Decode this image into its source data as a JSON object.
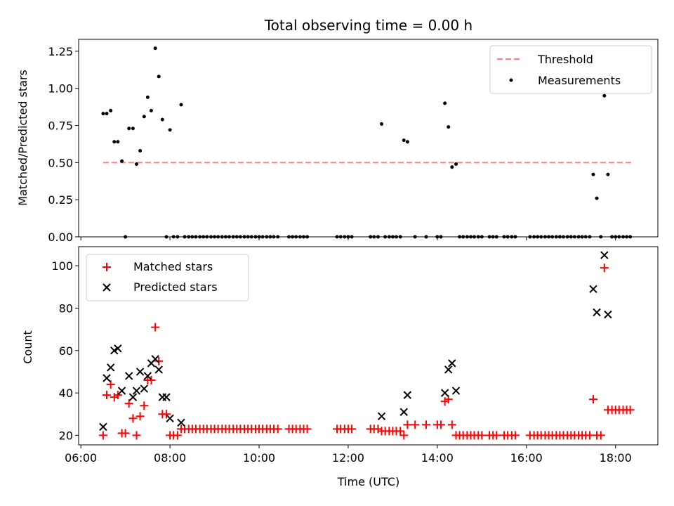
{
  "chart_data": [
    {
      "type": "scatter",
      "title": "Total observing time = 0.00 h",
      "xlabel": "",
      "ylabel": "Matched/Predicted stars",
      "ylim": [
        0,
        1.33
      ],
      "yticks": [
        "0.00",
        "0.25",
        "0.50",
        "0.75",
        "1.00",
        "1.25"
      ],
      "ytick_values": [
        0,
        0.25,
        0.5,
        0.75,
        1.0,
        1.25
      ],
      "grid": false,
      "legend_position": "top-right",
      "legend": [
        {
          "label": "Threshold",
          "style": "dashed-line",
          "color": "#ff7f7f"
        },
        {
          "label": "Measurements",
          "style": "dot",
          "color": "#000000"
        }
      ],
      "threshold": {
        "value": 0.5,
        "x_start": 6.5,
        "x_end": 18.35
      },
      "measurements": {
        "x": [
          6.5,
          6.58,
          6.67,
          6.75,
          6.83,
          6.92,
          7.0,
          7.08,
          7.17,
          7.25,
          7.33,
          7.42,
          7.5,
          7.58,
          7.67,
          7.75,
          7.83,
          7.92,
          8.0,
          8.08,
          8.17,
          8.25,
          8.33,
          8.42,
          8.5,
          8.58,
          8.67,
          8.75,
          8.83,
          8.92,
          9.0,
          9.08,
          9.17,
          9.25,
          9.33,
          9.42,
          9.5,
          9.58,
          9.67,
          9.75,
          9.83,
          9.92,
          10.0,
          10.08,
          10.17,
          10.25,
          10.33,
          10.42,
          10.67,
          10.75,
          10.83,
          10.92,
          11.0,
          11.08,
          11.75,
          11.83,
          11.92,
          12.0,
          12.08,
          12.5,
          12.58,
          12.67,
          12.75,
          12.83,
          12.92,
          13.0,
          13.08,
          13.17,
          13.25,
          13.33,
          13.5,
          13.75,
          14.0,
          14.08,
          14.17,
          14.25,
          14.33,
          14.42,
          14.5,
          14.58,
          14.67,
          14.75,
          14.83,
          14.92,
          15.0,
          15.17,
          15.25,
          15.33,
          15.5,
          15.58,
          15.67,
          15.75,
          16.08,
          16.17,
          16.25,
          16.33,
          16.42,
          16.5,
          16.58,
          16.67,
          16.75,
          16.83,
          16.92,
          17.0,
          17.08,
          17.17,
          17.25,
          17.33,
          17.42,
          17.5,
          17.58,
          17.67,
          17.75,
          17.83,
          17.92,
          18.0,
          18.08,
          18.17,
          18.25,
          18.33
        ],
        "y": [
          0.83,
          0.83,
          0.85,
          0.64,
          0.64,
          0.51,
          0.0,
          0.73,
          0.73,
          0.49,
          0.58,
          0.81,
          0.94,
          0.85,
          1.27,
          1.08,
          0.79,
          0.0,
          0.72,
          0.0,
          0.0,
          0.89,
          0.0,
          0.0,
          0.0,
          0.0,
          0.0,
          0.0,
          0.0,
          0.0,
          0.0,
          0.0,
          0.0,
          0.0,
          0.0,
          0.0,
          0.0,
          0.0,
          0.0,
          0.0,
          0.0,
          0.0,
          0.0,
          0.0,
          0.0,
          0.0,
          0.0,
          0.0,
          0.0,
          0.0,
          0.0,
          0.0,
          0.0,
          0.0,
          0.0,
          0.0,
          0.0,
          0.0,
          0.0,
          0.0,
          0.0,
          0.0,
          0.76,
          0.0,
          0.0,
          0.0,
          0.0,
          0.0,
          0.65,
          0.64,
          0.0,
          0.0,
          0.0,
          0.0,
          0.9,
          0.74,
          0.47,
          0.49,
          0.0,
          0.0,
          0.0,
          0.0,
          0.0,
          0.0,
          0.0,
          0.0,
          0.0,
          0.0,
          0.0,
          0.0,
          0.0,
          0.0,
          0.0,
          0.0,
          0.0,
          0.0,
          0.0,
          0.0,
          0.0,
          0.0,
          0.0,
          0.0,
          0.0,
          0.0,
          0.0,
          0.0,
          0.0,
          0.0,
          0.0,
          0.42,
          0.26,
          0.0,
          0.95,
          0.42,
          0.0,
          0.0,
          0.0,
          0.0,
          0.0,
          0.0
        ]
      }
    },
    {
      "type": "scatter",
      "title": "",
      "xlabel": "Time (UTC)",
      "ylabel": "Count",
      "ylim": [
        15.5,
        109
      ],
      "xlim": [
        5.95,
        18.95
      ],
      "xticks": [
        "06:00",
        "08:00",
        "10:00",
        "12:00",
        "14:00",
        "16:00",
        "18:00"
      ],
      "xtick_values": [
        6,
        8,
        10,
        12,
        14,
        16,
        18
      ],
      "yticks": [
        "20",
        "40",
        "60",
        "80",
        "100"
      ],
      "ytick_values": [
        20,
        40,
        60,
        80,
        100
      ],
      "grid": false,
      "legend_position": "top-left",
      "series": [
        {
          "name": "Matched stars",
          "marker": "plus",
          "color": "#ff0000",
          "x": [
            6.5,
            6.58,
            6.67,
            6.75,
            6.83,
            6.92,
            7.0,
            7.08,
            7.17,
            7.25,
            7.33,
            7.42,
            7.5,
            7.58,
            7.67,
            7.75,
            7.83,
            7.92,
            8.0,
            8.08,
            8.17,
            8.25,
            8.33,
            8.42,
            8.5,
            8.58,
            8.67,
            8.75,
            8.83,
            8.92,
            9.0,
            9.08,
            9.17,
            9.25,
            9.33,
            9.42,
            9.5,
            9.58,
            9.67,
            9.75,
            9.83,
            9.92,
            10.0,
            10.08,
            10.17,
            10.25,
            10.33,
            10.42,
            10.67,
            10.75,
            10.83,
            10.92,
            11.0,
            11.08,
            11.75,
            11.83,
            11.92,
            12.0,
            12.08,
            12.5,
            12.58,
            12.67,
            12.75,
            12.83,
            12.92,
            13.0,
            13.08,
            13.17,
            13.25,
            13.33,
            13.5,
            13.75,
            14.0,
            14.08,
            14.17,
            14.25,
            14.33,
            14.42,
            14.5,
            14.58,
            14.67,
            14.75,
            14.83,
            14.92,
            15.0,
            15.17,
            15.25,
            15.33,
            15.5,
            15.58,
            15.67,
            15.75,
            16.08,
            16.17,
            16.25,
            16.33,
            16.42,
            16.5,
            16.58,
            16.67,
            16.75,
            16.83,
            16.92,
            17.0,
            17.08,
            17.17,
            17.25,
            17.33,
            17.42,
            17.5,
            17.58,
            17.67,
            17.75,
            17.83,
            17.92,
            18.0,
            18.08,
            18.17,
            18.25,
            18.33
          ],
          "y": [
            20,
            39,
            44,
            38,
            39,
            21,
            21,
            35,
            28,
            20,
            29,
            34,
            46,
            46,
            71,
            55,
            30,
            30,
            20,
            20,
            20,
            23,
            23,
            23,
            23,
            23,
            23,
            23,
            23,
            23,
            23,
            23,
            23,
            23,
            23,
            23,
            23,
            23,
            23,
            23,
            23,
            23,
            23,
            23,
            23,
            23,
            23,
            23,
            23,
            23,
            23,
            23,
            23,
            23,
            23,
            23,
            23,
            23,
            23,
            23,
            23,
            23,
            22,
            22,
            22,
            22,
            22,
            22,
            20,
            25,
            25,
            25,
            25,
            25,
            36,
            37,
            25,
            20,
            20,
            20,
            20,
            20,
            20,
            20,
            20,
            20,
            20,
            20,
            20,
            20,
            20,
            20,
            20,
            20,
            20,
            20,
            20,
            20,
            20,
            20,
            20,
            20,
            20,
            20,
            20,
            20,
            20,
            20,
            20,
            37,
            20,
            20,
            99,
            32,
            32,
            32,
            32,
            32,
            32,
            32
          ]
        },
        {
          "name": "Predicted stars",
          "marker": "x",
          "color": "#000000",
          "x": [
            6.5,
            6.58,
            6.67,
            6.75,
            6.83,
            6.92,
            7.08,
            7.17,
            7.25,
            7.33,
            7.42,
            7.5,
            7.58,
            7.67,
            7.75,
            7.83,
            7.92,
            8.0,
            8.25,
            12.75,
            13.25,
            13.33,
            14.17,
            14.25,
            14.33,
            14.42,
            17.5,
            17.58,
            17.75,
            17.83
          ],
          "y": [
            24,
            47,
            52,
            60,
            61,
            41,
            48,
            38,
            41,
            50,
            42,
            48,
            54,
            56,
            51,
            38,
            38,
            28,
            26,
            29,
            31,
            39,
            40,
            51,
            54,
            41,
            89,
            78,
            105,
            77
          ]
        }
      ]
    }
  ]
}
